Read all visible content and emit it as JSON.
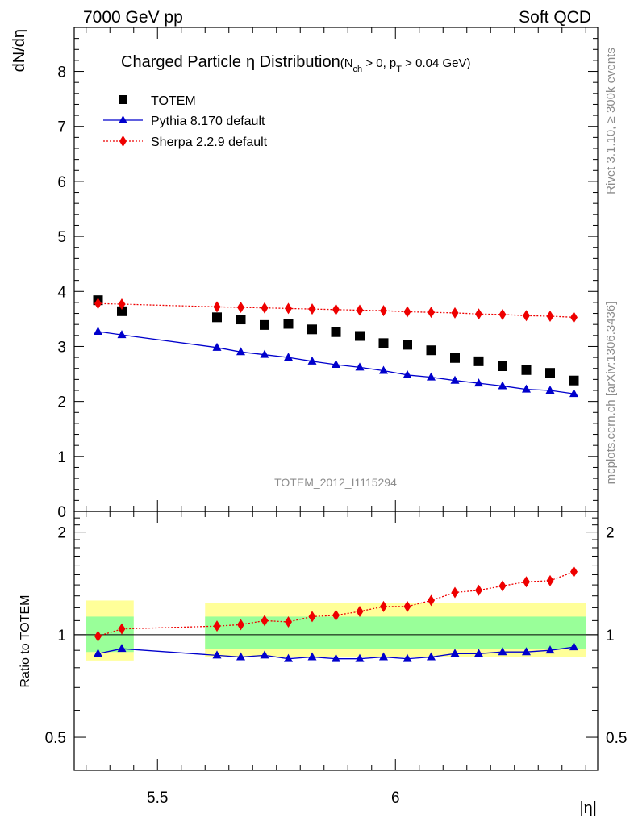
{
  "header": {
    "left": "7000 GeV pp",
    "right": "Soft QCD"
  },
  "side": {
    "rivet": "Rivet 3.1.10, ≥ 300k events",
    "mcplots": "mcplots.cern.ch [arXiv:1306.3436]"
  },
  "colors": {
    "totem": "#000000",
    "pythia": "#0000cc",
    "sherpa": "#ee0000",
    "band_inner": "#99ff99",
    "band_outer": "#ffff99"
  },
  "chart_data": [
    {
      "type": "scatter",
      "title_main": "Charged Particle",
      "title_eta": "η",
      "title_rest": " Distribution",
      "title_cond": {
        "open": "(N",
        "ch_sub": "ch",
        "mid": " > 0, p",
        "t_sub": "T",
        "close": " > 0.04 GeV)"
      },
      "ylabel": "dN/dη",
      "ylim": [
        0,
        8.8
      ],
      "yticks": [
        0,
        1,
        2,
        3,
        4,
        5,
        6,
        7,
        8
      ],
      "xlim": [
        5.325,
        6.425
      ],
      "watermark": "TOTEM_2012_I1115294",
      "legend_position": "top-left",
      "series": [
        {
          "name": "TOTEM",
          "marker": "square",
          "x": [
            5.375,
            5.425,
            5.625,
            5.675,
            5.725,
            5.775,
            5.825,
            5.875,
            5.925,
            5.975,
            6.025,
            6.075,
            6.125,
            6.175,
            6.225,
            6.275,
            6.325,
            6.375
          ],
          "y": [
            3.84,
            3.64,
            3.53,
            3.49,
            3.39,
            3.41,
            3.31,
            3.26,
            3.19,
            3.06,
            3.03,
            2.93,
            2.79,
            2.73,
            2.64,
            2.57,
            2.52,
            2.38
          ]
        },
        {
          "name": "Pythia 8.170 default",
          "marker": "triangle",
          "x": [
            5.375,
            5.425,
            5.625,
            5.675,
            5.725,
            5.775,
            5.825,
            5.875,
            5.925,
            5.975,
            6.025,
            6.075,
            6.125,
            6.175,
            6.225,
            6.275,
            6.325,
            6.375
          ],
          "y": [
            3.27,
            3.21,
            2.98,
            2.9,
            2.85,
            2.8,
            2.73,
            2.67,
            2.62,
            2.56,
            2.48,
            2.44,
            2.38,
            2.33,
            2.28,
            2.22,
            2.2,
            2.14
          ]
        },
        {
          "name": "Sherpa 2.2.9 default",
          "marker": "diamond",
          "x": [
            5.375,
            5.425,
            5.625,
            5.675,
            5.725,
            5.775,
            5.825,
            5.875,
            5.925,
            5.975,
            6.025,
            6.075,
            6.125,
            6.175,
            6.225,
            6.275,
            6.325,
            6.375
          ],
          "y": [
            3.78,
            3.77,
            3.72,
            3.71,
            3.7,
            3.69,
            3.68,
            3.67,
            3.66,
            3.65,
            3.63,
            3.62,
            3.61,
            3.59,
            3.58,
            3.56,
            3.55,
            3.53
          ]
        }
      ]
    },
    {
      "type": "scatter",
      "ylabel": "Ratio to TOTEM",
      "xlabel": "|η|",
      "ylim": [
        0.4,
        2.3
      ],
      "yscale": "log",
      "yticks": [
        0.5,
        1,
        2
      ],
      "ytick_labels": [
        "0.5",
        "1",
        "2"
      ],
      "xlim": [
        5.325,
        6.425
      ],
      "xticks": [
        5.5,
        6
      ],
      "xtick_labels": [
        "5.5",
        "6"
      ],
      "bands": [
        {
          "x_from": 5.35,
          "x_to": 5.45,
          "outer": [
            0.84,
            1.26
          ],
          "inner": [
            0.89,
            1.13
          ]
        },
        {
          "x_from": 5.6,
          "x_to": 6.4,
          "outer": [
            0.86,
            1.24
          ],
          "inner": [
            0.91,
            1.13
          ]
        }
      ],
      "series": [
        {
          "name": "Pythia 8.170 default",
          "x": [
            5.375,
            5.425,
            5.625,
            5.675,
            5.725,
            5.775,
            5.825,
            5.875,
            5.925,
            5.975,
            6.025,
            6.075,
            6.125,
            6.175,
            6.225,
            6.275,
            6.325,
            6.375
          ],
          "y": [
            0.88,
            0.91,
            0.87,
            0.86,
            0.87,
            0.85,
            0.86,
            0.85,
            0.85,
            0.86,
            0.85,
            0.86,
            0.88,
            0.88,
            0.89,
            0.89,
            0.9,
            0.92
          ]
        },
        {
          "name": "Sherpa 2.2.9 default",
          "x": [
            5.375,
            5.425,
            5.625,
            5.675,
            5.725,
            5.775,
            5.825,
            5.875,
            5.925,
            5.975,
            6.025,
            6.075,
            6.125,
            6.175,
            6.225,
            6.275,
            6.325,
            6.375
          ],
          "y": [
            0.99,
            1.04,
            1.06,
            1.07,
            1.1,
            1.09,
            1.13,
            1.14,
            1.17,
            1.21,
            1.21,
            1.26,
            1.33,
            1.35,
            1.39,
            1.43,
            1.44,
            1.53
          ]
        }
      ]
    }
  ]
}
